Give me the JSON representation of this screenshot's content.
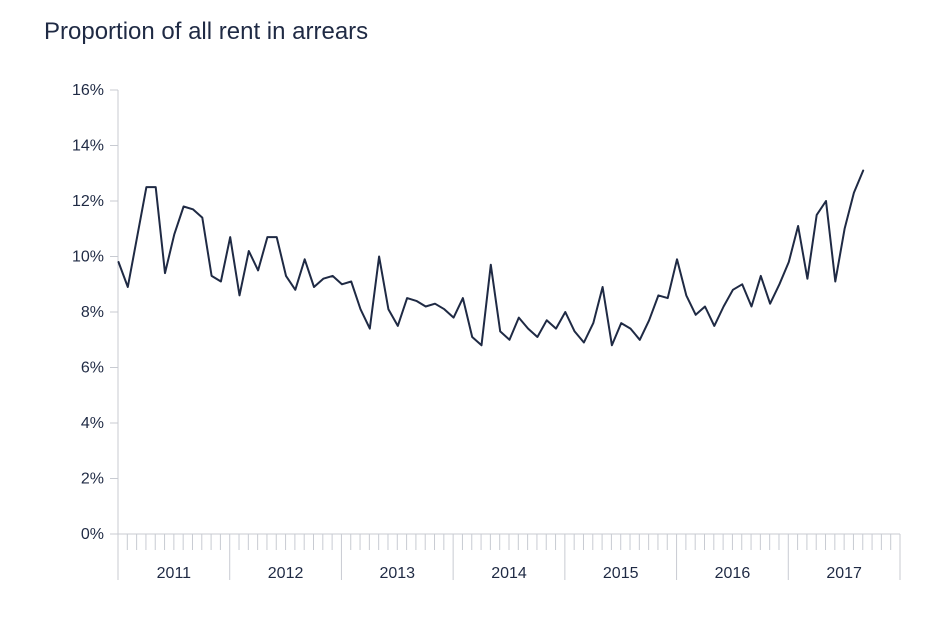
{
  "chart_data": {
    "type": "line",
    "title": "Proportion of all rent in arrears",
    "xlabel": "",
    "ylabel": "",
    "ylim": [
      0,
      16
    ],
    "y_ticks": [
      0,
      2,
      4,
      6,
      8,
      10,
      12,
      14,
      16
    ],
    "y_tick_labels": [
      "0%",
      "2%",
      "4%",
      "6%",
      "8%",
      "10%",
      "12%",
      "14%",
      "16%"
    ],
    "x_tick_labels": [
      "2011",
      "2012",
      "2013",
      "2014",
      "2015",
      "2016",
      "2017"
    ],
    "x_start_year": 2011,
    "months_total": 84,
    "grid": false,
    "color": "#1f2a44",
    "series": [
      {
        "name": "Proportion of all rent in arrears",
        "values": [
          9.8,
          8.9,
          10.7,
          12.5,
          12.5,
          9.4,
          10.8,
          11.8,
          11.7,
          11.4,
          9.3,
          9.1,
          10.7,
          8.6,
          10.2,
          9.5,
          10.7,
          10.7,
          9.3,
          8.8,
          9.9,
          8.9,
          9.2,
          9.3,
          9.0,
          9.1,
          8.1,
          7.4,
          10.0,
          8.1,
          7.5,
          8.5,
          8.4,
          8.2,
          8.3,
          8.1,
          7.8,
          8.5,
          7.1,
          6.8,
          9.7,
          7.3,
          7.0,
          7.8,
          7.4,
          7.1,
          7.7,
          7.4,
          8.0,
          7.3,
          6.9,
          7.6,
          8.9,
          6.8,
          7.6,
          7.4,
          7.0,
          7.7,
          8.6,
          8.5,
          9.9,
          8.6,
          7.9,
          8.2,
          7.5,
          8.2,
          8.8,
          9.0,
          8.2,
          9.3,
          8.3,
          9.0,
          9.8,
          11.1,
          9.2,
          11.5,
          12.0,
          9.1,
          11.0,
          12.3,
          13.1
        ]
      }
    ]
  }
}
